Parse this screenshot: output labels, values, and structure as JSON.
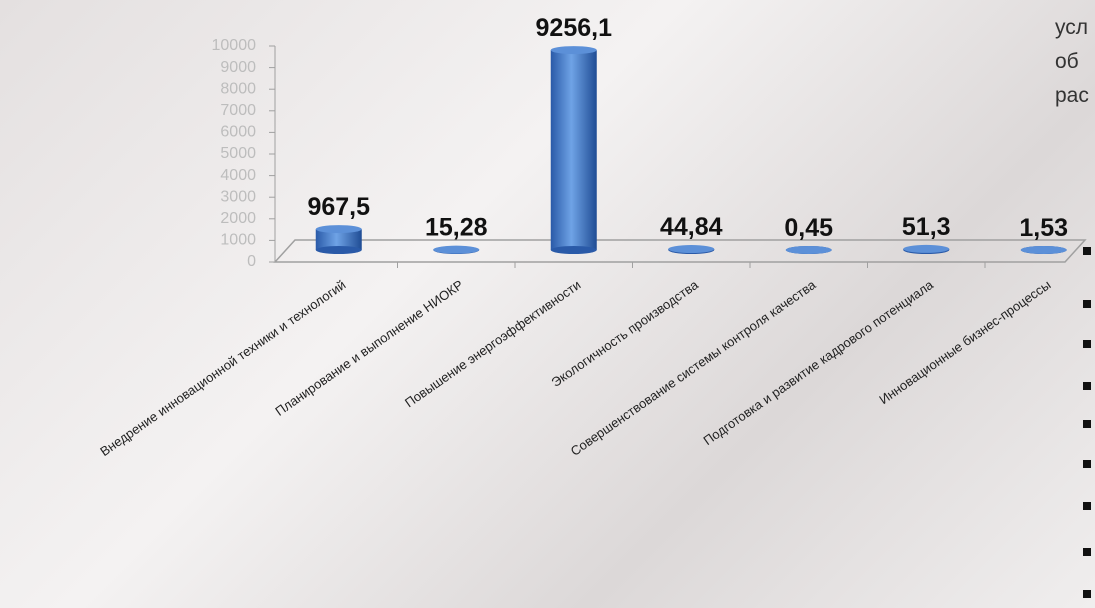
{
  "chart_data": {
    "type": "bar",
    "categories": [
      "Внедрение инновационной техники и технологий",
      "Планирование и выполнение НИОКР",
      "Повышение энергоэффективности",
      "Экологичность производства",
      "Совершенствование системы контроля качества",
      "Подготовка и развитие кадрового потенциала",
      "Инновационные бизнес-процессы"
    ],
    "values": [
      967.5,
      15.28,
      9256.1,
      44.84,
      0.45,
      51.3,
      1.53
    ],
    "value_labels": [
      "967,5",
      "15,28",
      "9256,1",
      "44,84",
      "0,45",
      "51,3",
      "1,53"
    ],
    "color": "#3b74c8",
    "ylim": [
      0,
      10000
    ],
    "yticks": [
      0,
      1000,
      2000,
      3000,
      4000,
      5000,
      6000,
      7000,
      8000,
      9000,
      10000
    ],
    "annotations": [
      "усл",
      "об",
      "рас"
    ]
  }
}
